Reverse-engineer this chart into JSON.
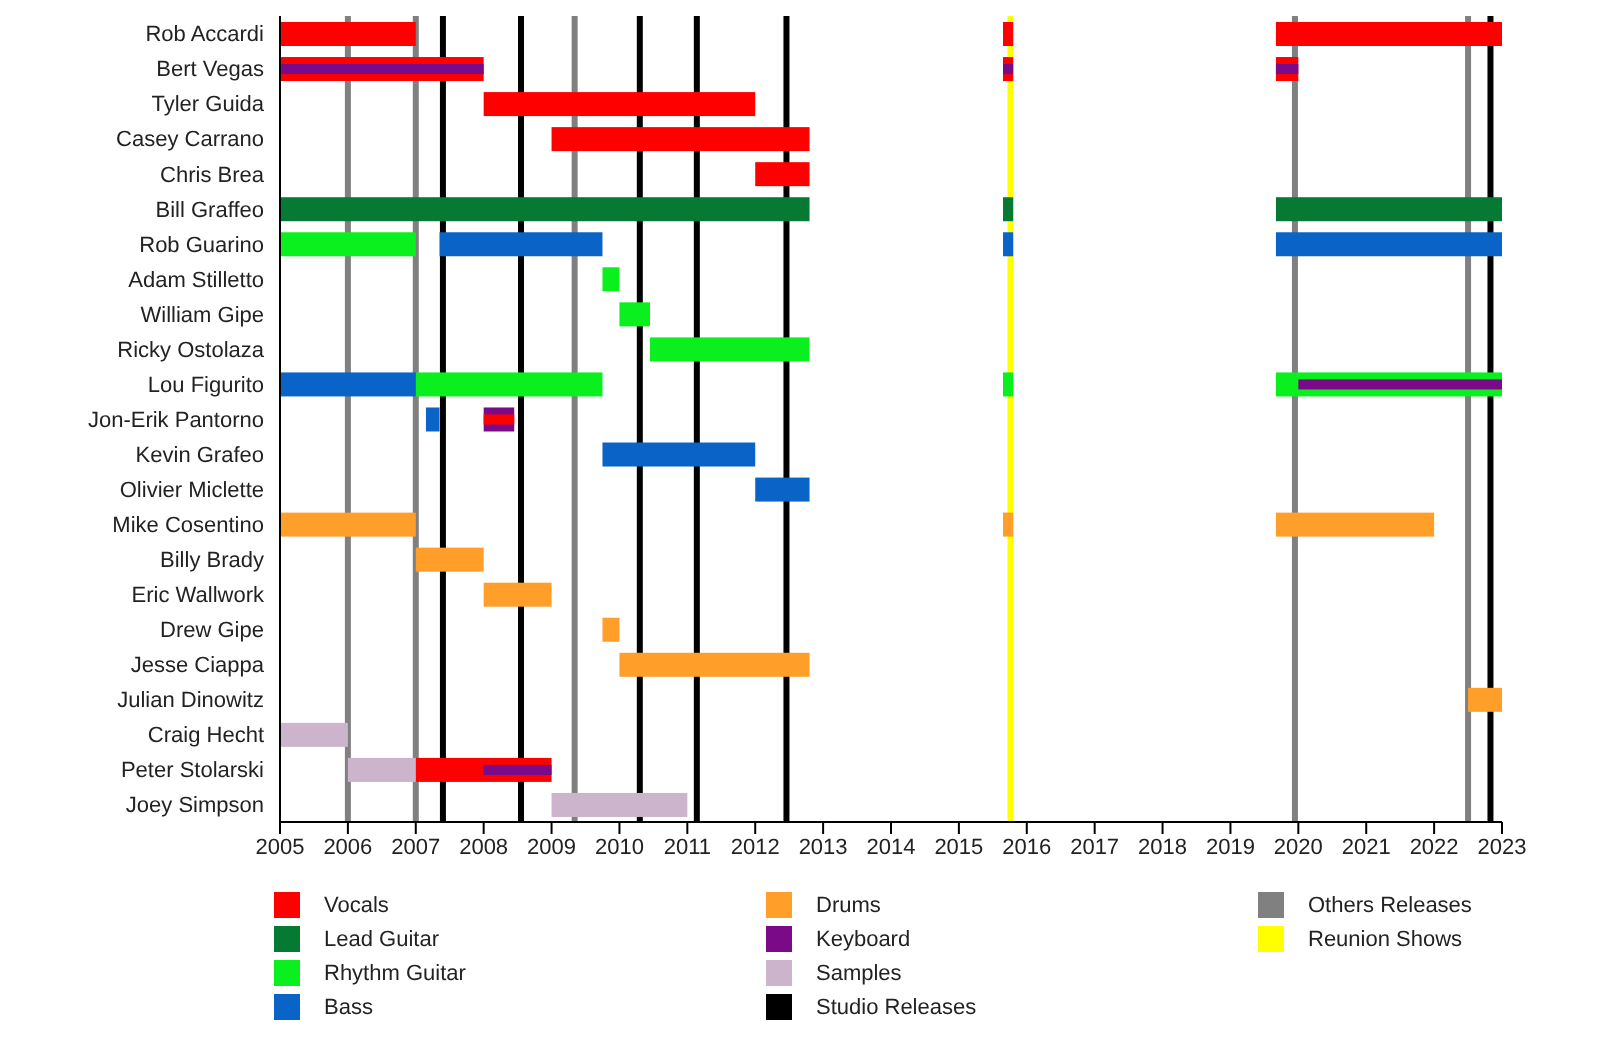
{
  "chart_data": {
    "type": "bar",
    "orientation": "horizontal",
    "categories": [
      "Rob Accardi",
      "Bert Vegas",
      "Tyler Guida",
      "Casey Carrano",
      "Chris Brea",
      "Bill Graffeo",
      "Rob Guarino",
      "Adam Stilletto",
      "William Gipe",
      "Ricky Ostolaza",
      "Lou Figurito",
      "Jon-Erik Pantorno",
      "Kevin Grafeo",
      "Olivier Miclette",
      "Mike Cosentino",
      "Billy Brady",
      "Eric Wallwork",
      "Drew Gipe",
      "Jesse Ciappa",
      "Julian Dinowitz",
      "Craig Hecht",
      "Peter Stolarski",
      "Joey Simpson"
    ],
    "series": [
      {
        "name": "Vocals",
        "color": "#ff0000",
        "values": [
          2,
          3,
          4,
          3.8,
          0.8,
          null,
          null,
          null,
          null,
          null,
          null,
          null,
          null,
          null,
          null,
          null,
          null,
          null,
          null,
          null,
          null,
          2,
          null
        ],
        "base": [
          2005,
          2005,
          2008,
          2009,
          2012,
          null,
          null,
          null,
          null,
          null,
          null,
          null,
          null,
          null,
          null,
          null,
          null,
          null,
          null,
          null,
          null,
          2007,
          null
        ]
      },
      {
        "name": "Lead Guitar",
        "color": "#067a32",
        "values": [
          null,
          null,
          null,
          null,
          null,
          7.8,
          null,
          null,
          null,
          null,
          null,
          null,
          null,
          null,
          null,
          null,
          null,
          null,
          null,
          null,
          null,
          null,
          null
        ],
        "base": [
          null,
          null,
          null,
          null,
          null,
          2005,
          null,
          null,
          null,
          null,
          null,
          null,
          null,
          null,
          null,
          null,
          null,
          null,
          null,
          null,
          null,
          null,
          null
        ]
      },
      {
        "name": "Rhythm Guitar",
        "color": "#0af01e",
        "values": [
          null,
          null,
          null,
          null,
          null,
          null,
          2,
          0.25,
          0.45,
          2.35,
          2.75,
          null,
          null,
          null,
          null,
          null,
          null,
          null,
          null,
          null,
          null,
          null,
          null
        ],
        "base": [
          null,
          null,
          null,
          null,
          null,
          null,
          2005,
          2009.75,
          2010,
          2010.45,
          2007,
          null,
          null,
          null,
          null,
          null,
          null,
          null,
          null,
          null,
          null,
          null,
          null
        ]
      },
      {
        "name": "Bass",
        "color": "#0a64c8",
        "values": [
          null,
          null,
          null,
          null,
          null,
          null,
          2.4,
          null,
          null,
          null,
          2,
          0.2,
          2.25,
          0.8,
          null,
          null,
          null,
          null,
          null,
          null,
          null,
          null,
          null
        ],
        "base": [
          null,
          null,
          null,
          null,
          null,
          null,
          2007.35,
          null,
          null,
          null,
          2005,
          2007.15,
          2009.75,
          2012,
          null,
          null,
          null,
          null,
          null,
          null,
          null,
          null,
          null
        ]
      },
      {
        "name": "Drums",
        "color": "#ff9f2a",
        "values": [
          null,
          null,
          null,
          null,
          null,
          null,
          null,
          null,
          null,
          null,
          null,
          null,
          null,
          null,
          2,
          1,
          1,
          0.25,
          2.8,
          0.5,
          null,
          null,
          null
        ],
        "base": [
          null,
          null,
          null,
          null,
          null,
          null,
          null,
          null,
          null,
          null,
          null,
          null,
          null,
          null,
          2005,
          2007,
          2008,
          2009.75,
          2010,
          2022.5,
          null,
          null,
          null
        ]
      },
      {
        "name": "Keyboard",
        "color": "#7a0a88",
        "values": [
          null,
          3,
          null,
          null,
          null,
          null,
          null,
          null,
          null,
          null,
          null,
          0.45,
          null,
          null,
          null,
          null,
          null,
          null,
          null,
          null,
          null,
          1,
          null
        ],
        "base": [
          null,
          2005,
          null,
          null,
          null,
          null,
          null,
          null,
          null,
          null,
          null,
          2008,
          null,
          null,
          null,
          null,
          null,
          null,
          null,
          null,
          null,
          2008,
          null
        ]
      },
      {
        "name": "Samples",
        "color": "#ccb4cc",
        "values": [
          null,
          null,
          null,
          null,
          null,
          null,
          null,
          null,
          null,
          null,
          null,
          null,
          null,
          null,
          null,
          null,
          null,
          null,
          null,
          null,
          1,
          1,
          2
        ],
        "base": [
          null,
          null,
          null,
          null,
          null,
          null,
          null,
          null,
          null,
          null,
          null,
          null,
          null,
          null,
          null,
          null,
          null,
          null,
          null,
          null,
          2005,
          2006,
          2009
        ]
      },
      {
        "color": "#ff0000",
        "values": [
          0.15,
          0.15,
          null,
          null,
          null,
          null,
          null,
          null,
          null,
          null,
          null,
          0.45,
          null,
          null,
          null,
          null,
          null,
          null,
          null,
          null,
          null,
          null,
          null
        ],
        "base": [
          2015.65,
          2015.65,
          null,
          null,
          null,
          null,
          null,
          null,
          null,
          null,
          null,
          2008,
          null,
          null,
          null,
          null,
          null,
          null,
          null,
          null,
          null,
          null,
          null
        ]
      },
      {
        "color": "#ff0000",
        "values": [
          3.33,
          0.33,
          null,
          null,
          null,
          null,
          null,
          null,
          null,
          null,
          null,
          null,
          null,
          null,
          null,
          null,
          null,
          null,
          null,
          null,
          null,
          null,
          null
        ],
        "base": [
          2019.67,
          2019.67,
          null,
          null,
          null,
          null,
          null,
          null,
          null,
          null,
          null,
          null,
          null,
          null,
          null,
          null,
          null,
          null,
          null,
          null,
          null,
          null,
          null
        ]
      },
      {
        "color": "#067a32",
        "values": [
          null,
          null,
          null,
          null,
          null,
          0.15,
          null,
          null,
          null,
          null,
          null,
          null,
          null,
          null,
          null,
          null,
          null,
          null,
          null,
          null,
          null,
          null,
          null
        ],
        "base": [
          null,
          null,
          null,
          null,
          null,
          2015.65,
          null,
          null,
          null,
          null,
          null,
          null,
          null,
          null,
          null,
          null,
          null,
          null,
          null,
          null,
          null,
          null,
          null
        ]
      },
      {
        "color": "#067a32",
        "values": [
          null,
          null,
          null,
          null,
          null,
          3.33,
          null,
          null,
          null,
          null,
          null,
          null,
          null,
          null,
          null,
          null,
          null,
          null,
          null,
          null,
          null,
          null,
          null
        ],
        "base": [
          null,
          null,
          null,
          null,
          null,
          2019.67,
          null,
          null,
          null,
          null,
          null,
          null,
          null,
          null,
          null,
          null,
          null,
          null,
          null,
          null,
          null,
          null,
          null
        ]
      },
      {
        "color": "#0af01e",
        "values": [
          null,
          null,
          null,
          null,
          null,
          null,
          null,
          null,
          null,
          null,
          0.15,
          null,
          null,
          null,
          null,
          null,
          null,
          null,
          null,
          null,
          null,
          null,
          null
        ],
        "base": [
          null,
          null,
          null,
          null,
          null,
          null,
          null,
          null,
          null,
          null,
          2015.65,
          null,
          null,
          null,
          null,
          null,
          null,
          null,
          null,
          null,
          null,
          null,
          null
        ]
      },
      {
        "color": "#0af01e",
        "values": [
          null,
          null,
          null,
          null,
          null,
          null,
          null,
          null,
          null,
          null,
          3.33,
          null,
          null,
          null,
          null,
          null,
          null,
          null,
          null,
          null,
          null,
          null,
          null
        ],
        "base": [
          null,
          null,
          null,
          null,
          null,
          null,
          null,
          null,
          null,
          null,
          2019.67,
          null,
          null,
          null,
          null,
          null,
          null,
          null,
          null,
          null,
          null,
          null,
          null
        ]
      },
      {
        "color": "#0a64c8",
        "values": [
          null,
          null,
          null,
          null,
          null,
          null,
          0.15,
          null,
          null,
          null,
          null,
          null,
          null,
          null,
          null,
          null,
          null,
          null,
          null,
          null,
          null,
          null,
          null
        ],
        "base": [
          null,
          null,
          null,
          null,
          null,
          null,
          2015.65,
          null,
          null,
          null,
          null,
          null,
          null,
          null,
          null,
          null,
          null,
          null,
          null,
          null,
          null,
          null,
          null
        ]
      },
      {
        "color": "#0a64c8",
        "values": [
          null,
          null,
          null,
          null,
          null,
          null,
          3.33,
          null,
          null,
          null,
          null,
          null,
          null,
          null,
          null,
          null,
          null,
          null,
          null,
          null,
          null,
          null,
          null
        ],
        "base": [
          null,
          null,
          null,
          null,
          null,
          null,
          2019.67,
          null,
          null,
          null,
          null,
          null,
          null,
          null,
          null,
          null,
          null,
          null,
          null,
          null,
          null,
          null,
          null
        ]
      },
      {
        "color": "#ff9f2a",
        "values": [
          null,
          null,
          null,
          null,
          null,
          null,
          null,
          null,
          null,
          null,
          null,
          null,
          null,
          null,
          0.15,
          null,
          null,
          null,
          null,
          null,
          null,
          null,
          null
        ],
        "base": [
          null,
          null,
          null,
          null,
          null,
          null,
          null,
          null,
          null,
          null,
          null,
          null,
          null,
          null,
          2015.65,
          null,
          null,
          null,
          null,
          null,
          null,
          null,
          null
        ]
      },
      {
        "color": "#ff9f2a",
        "values": [
          null,
          null,
          null,
          null,
          null,
          null,
          null,
          null,
          null,
          null,
          null,
          null,
          null,
          null,
          2.33,
          null,
          null,
          null,
          null,
          null,
          null,
          null,
          null
        ],
        "base": [
          null,
          null,
          null,
          null,
          null,
          null,
          null,
          null,
          null,
          null,
          null,
          null,
          null,
          null,
          2019.67,
          null,
          null,
          null,
          null,
          null,
          null,
          null,
          null
        ]
      },
      {
        "color": "#7a0a88",
        "values": [
          null,
          0.15,
          null,
          null,
          null,
          null,
          null,
          null,
          null,
          null,
          3,
          null,
          null,
          null,
          null,
          null,
          null,
          null,
          null,
          null,
          null,
          null,
          null
        ],
        "base": [
          null,
          2015.65,
          null,
          null,
          null,
          null,
          null,
          null,
          null,
          null,
          2020,
          null,
          null,
          null,
          null,
          null,
          null,
          null,
          null,
          null,
          null,
          null,
          null
        ]
      },
      {
        "color": "#7a0a88",
        "values": [
          null,
          0.33,
          null,
          null,
          null,
          null,
          null,
          null,
          null,
          null,
          null,
          null,
          null,
          null,
          null,
          null,
          null,
          null,
          null,
          null,
          null,
          null,
          null
        ],
        "base": [
          null,
          2019.67,
          null,
          null,
          null,
          null,
          null,
          null,
          null,
          null,
          null,
          null,
          null,
          null,
          null,
          null,
          null,
          null,
          null,
          null,
          null,
          null,
          null
        ]
      }
    ],
    "ref_lines": [
      {
        "axis": "x",
        "value": 2007.4,
        "label": "Studio Releases",
        "color": "#000000"
      },
      {
        "axis": "x",
        "value": 2008.55,
        "color": "#000000"
      },
      {
        "axis": "x",
        "value": 2010.3,
        "color": "#000000"
      },
      {
        "axis": "x",
        "value": 2011.14,
        "color": "#000000"
      },
      {
        "axis": "x",
        "value": 2012.46,
        "color": "#000000"
      },
      {
        "axis": "x",
        "value": 2022.83,
        "color": "#000000"
      },
      {
        "axis": "x",
        "value": 2006,
        "label": "Others Releases",
        "color": "#808080"
      },
      {
        "axis": "x",
        "value": 2007,
        "color": "#808080"
      },
      {
        "axis": "x",
        "value": 2009.34,
        "color": "#808080"
      },
      {
        "axis": "x",
        "value": 2019.95,
        "color": "#808080"
      },
      {
        "axis": "x",
        "value": 2022.5,
        "color": "#808080"
      },
      {
        "axis": "x",
        "value": 2015.76,
        "label": "Reunion Shows",
        "color": "#ffff00"
      }
    ],
    "xlim": [
      2005,
      2023
    ],
    "xticks": [
      2005,
      2006,
      2007,
      2008,
      2009,
      2010,
      2011,
      2012,
      2013,
      2014,
      2015,
      2016,
      2017,
      2018,
      2019,
      2020,
      2021,
      2022,
      2023
    ],
    "grid": false,
    "legend": "bottom"
  }
}
